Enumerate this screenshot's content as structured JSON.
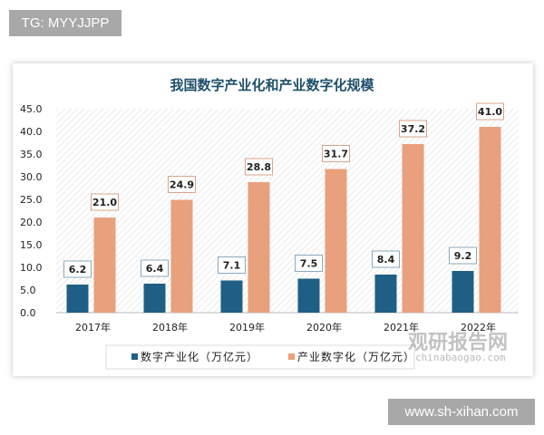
{
  "watermarks": {
    "top_left": "TG: MYYJJPP",
    "bottom_right": "www.sh-xihan.com",
    "logo_cn": "观研报告网",
    "logo_url": "chinabaogao.com"
  },
  "chart_data": {
    "type": "bar",
    "title": "我国数字产业化和产业数字化规模",
    "categories": [
      "2017年",
      "2018年",
      "2019年",
      "2020年",
      "2021年",
      "2022年"
    ],
    "series": [
      {
        "name": "数字产业化（万亿元）",
        "values": [
          6.2,
          6.4,
          7.1,
          7.5,
          8.4,
          9.2
        ],
        "color": "#1f5f86"
      },
      {
        "name": "产业数字化（万亿元）",
        "values": [
          21.0,
          24.9,
          28.8,
          31.7,
          37.2,
          41.0
        ],
        "color": "#e9a07c"
      }
    ],
    "ylim": [
      0,
      45
    ],
    "yticks": [
      "0.0",
      "5.0",
      "10.0",
      "15.0",
      "20.0",
      "25.0",
      "30.0",
      "35.0",
      "40.0",
      "45.0"
    ],
    "legend": "bottom",
    "grid": false
  }
}
